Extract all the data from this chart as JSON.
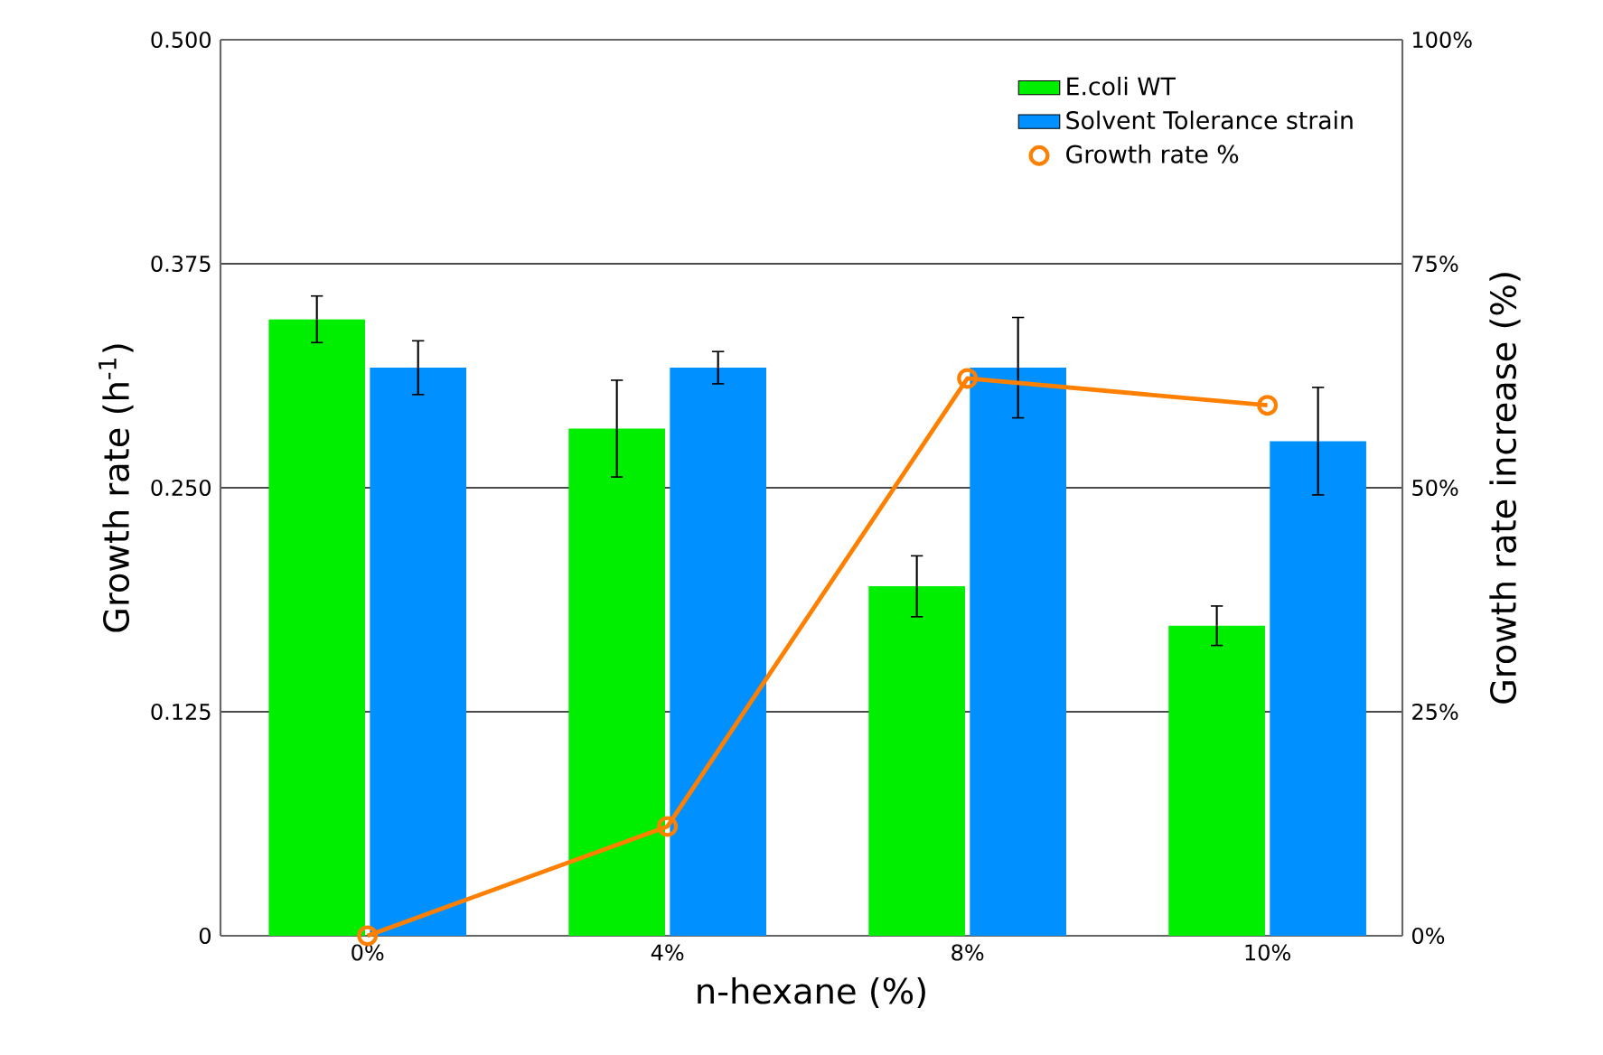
{
  "chart_data": {
    "type": "bar",
    "xlabel": "n-hexane (%)",
    "ylabel": "Growth rate (h$^{-1}$)",
    "y2label": "Growth rate increase (%)",
    "categories": [
      "0%",
      "4%",
      "8%",
      "10%"
    ],
    "series": [
      {
        "name": "E.coli WT",
        "color": "#00ee00",
        "values": [
          0.344,
          0.283,
          0.195,
          0.173
        ],
        "errors": [
          0.013,
          0.027,
          0.017,
          0.011
        ]
      },
      {
        "name": "Solvent Tolerance strain",
        "color": "#0090ff",
        "values": [
          0.317,
          0.317,
          0.317,
          0.276
        ],
        "errors": [
          0.015,
          0.009,
          0.028,
          0.03
        ]
      },
      {
        "name": "Growth rate %",
        "type": "line",
        "axis": "y2",
        "color": "#ff8000",
        "marker": "circle",
        "values": [
          0,
          12.2,
          62.2,
          59.2
        ]
      }
    ],
    "ylim": [
      0,
      0.5
    ],
    "yticks": [
      0,
      0.125,
      {
        "value": 0.25,
        "label": "0.250"
      },
      {
        "value": 0.375,
        "label": "0.375"
      },
      {
        "value": 0.5,
        "label": "0.500"
      }
    ],
    "y2lim": [
      0,
      100
    ],
    "y2ticks": [
      {
        "value": 0,
        "label": "0%"
      },
      {
        "value": 25,
        "label": "25%"
      },
      {
        "value": 50,
        "label": "50%"
      },
      {
        "value": 75,
        "label": "75%"
      },
      {
        "value": 100,
        "label": "100%"
      }
    ],
    "grid": "y",
    "legend": "top right"
  }
}
